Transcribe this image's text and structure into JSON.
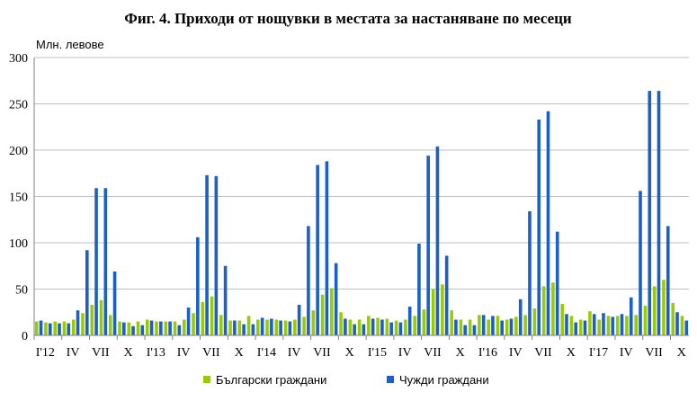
{
  "chart_data": {
    "type": "bar",
    "title": "Фиг. 4. Приходи от нощувки в местата за настаняване по месеци",
    "ylabel": "Млн. левове",
    "xlabel": "",
    "ylim": [
      0,
      300
    ],
    "yticks": [
      0,
      50,
      100,
      150,
      200,
      250,
      300
    ],
    "grid": true,
    "legend_position": "bottom",
    "x_tick_labels": [
      {
        "index": 0,
        "label": "I'12"
      },
      {
        "index": 3,
        "label": "IV"
      },
      {
        "index": 6,
        "label": "VII"
      },
      {
        "index": 9,
        "label": "X"
      },
      {
        "index": 12,
        "label": "I'13"
      },
      {
        "index": 15,
        "label": "IV"
      },
      {
        "index": 18,
        "label": "VII"
      },
      {
        "index": 21,
        "label": "X"
      },
      {
        "index": 24,
        "label": "I'14"
      },
      {
        "index": 27,
        "label": "IV"
      },
      {
        "index": 30,
        "label": "VII"
      },
      {
        "index": 33,
        "label": "X"
      },
      {
        "index": 36,
        "label": "I'15"
      },
      {
        "index": 39,
        "label": "IV"
      },
      {
        "index": 42,
        "label": "VII"
      },
      {
        "index": 45,
        "label": "X"
      },
      {
        "index": 48,
        "label": "I'16"
      },
      {
        "index": 51,
        "label": "IV"
      },
      {
        "index": 54,
        "label": "VII"
      },
      {
        "index": 57,
        "label": "X"
      },
      {
        "index": 60,
        "label": "I'17"
      },
      {
        "index": 63,
        "label": "IV"
      },
      {
        "index": 66,
        "label": "VII"
      },
      {
        "index": 69,
        "label": "X"
      }
    ],
    "series": [
      {
        "name": "Български граждани",
        "color": "#99cc00",
        "values": [
          15,
          14,
          15,
          15,
          17,
          24,
          33,
          38,
          22,
          15,
          14,
          15,
          17,
          15,
          15,
          15,
          17,
          24,
          36,
          42,
          22,
          16,
          16,
          21,
          17,
          17,
          17,
          16,
          17,
          20,
          27,
          44,
          51,
          25,
          17,
          17,
          21,
          19,
          18,
          16,
          17,
          21,
          28,
          50,
          55,
          27,
          17,
          17,
          22,
          17,
          21,
          17,
          20,
          22,
          29,
          53,
          57,
          34,
          21,
          17,
          26,
          17,
          21,
          21,
          21,
          22,
          32,
          53,
          60,
          35,
          21
        ]
      },
      {
        "name": "Чужди граждани",
        "color": "#1a5fcc",
        "values": [
          16,
          13,
          13,
          13,
          27,
          92,
          159,
          159,
          69,
          14,
          10,
          11,
          16,
          15,
          15,
          11,
          30,
          106,
          173,
          172,
          75,
          16,
          12,
          12,
          19,
          18,
          16,
          15,
          33,
          118,
          184,
          188,
          78,
          18,
          12,
          12,
          18,
          17,
          14,
          14,
          31,
          99,
          194,
          204,
          86,
          17,
          11,
          11,
          22,
          21,
          16,
          18,
          39,
          134,
          233,
          242,
          112,
          23,
          14,
          16,
          23,
          24,
          20,
          23,
          41,
          156,
          264,
          264,
          118,
          25,
          16
        ]
      }
    ]
  }
}
